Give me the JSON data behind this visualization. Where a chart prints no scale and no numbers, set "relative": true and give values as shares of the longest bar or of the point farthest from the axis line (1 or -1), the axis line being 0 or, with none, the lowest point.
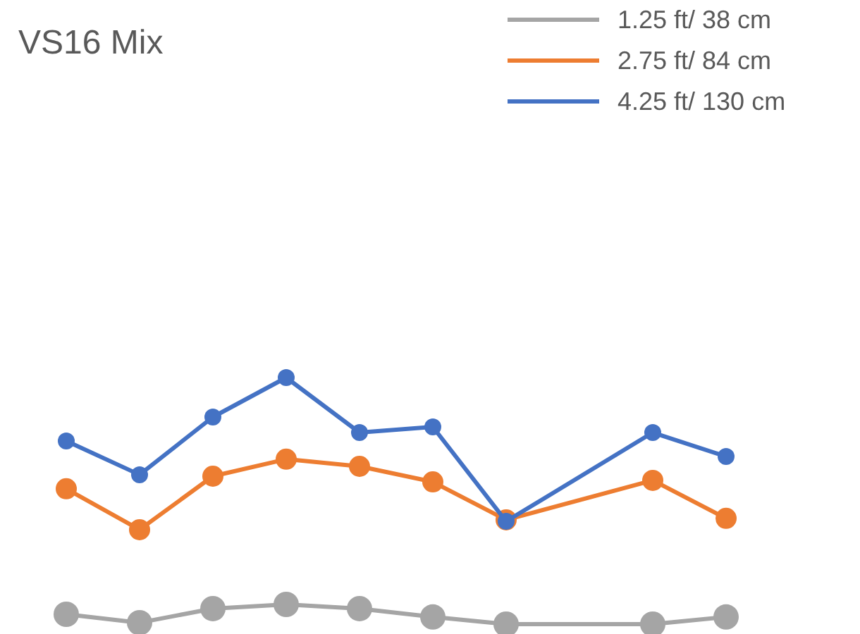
{
  "chart_data": {
    "type": "line",
    "title": "VS16 Mix",
    "relative": true,
    "categories": [
      null,
      null,
      null,
      null,
      null,
      null,
      null,
      null,
      null,
      null
    ],
    "legend": "top right",
    "marker": "circle",
    "series": [
      {
        "name": "1.25 ft/ 38 cm",
        "color": "#a5a5a5",
        "values": [
          0.04,
          0.006,
          0.063,
          0.08,
          0.063,
          0.029,
          0,
          null,
          0,
          0.029
        ]
      },
      {
        "name": "2.75 ft/ 84 cm",
        "color": "#ed7d31",
        "values": [
          0.549,
          0.383,
          0.6,
          0.669,
          0.64,
          0.577,
          0.423,
          null,
          0.583,
          0.429
        ]
      },
      {
        "name": "4.25 ft/ 130 cm",
        "color": "#4472c4",
        "values": [
          0.743,
          0.606,
          0.84,
          1,
          0.777,
          0.8,
          0.417,
          null,
          0.777,
          0.68
        ]
      }
    ]
  }
}
